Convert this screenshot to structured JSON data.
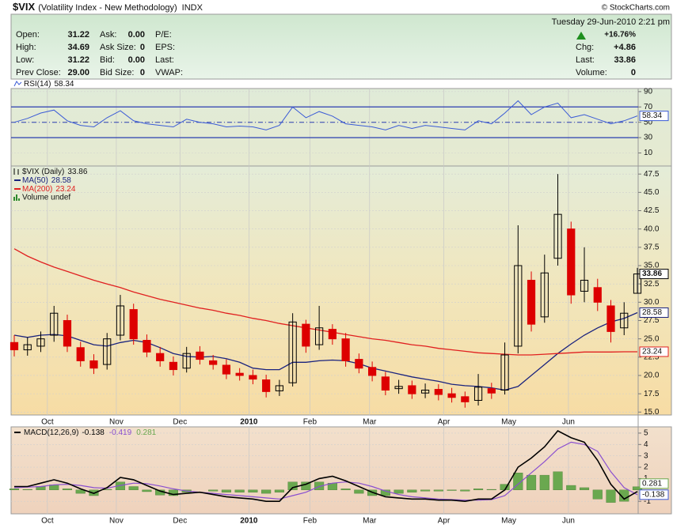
{
  "header": {
    "symbol": "$VIX",
    "name": "(Volatility Index - New Methodology)",
    "exchange": "INDX",
    "copyright": "© StockCharts.com",
    "timestamp": "Tuesday  29-Jun-2010  2:21 pm",
    "fields": [
      {
        "label": "Open:",
        "value": "31.22"
      },
      {
        "label": "High:",
        "value": "34.69"
      },
      {
        "label": "Low:",
        "value": "31.22"
      },
      {
        "label": "Prev Close:",
        "value": "29.00"
      },
      {
        "label": "Ask:",
        "value": "0.00"
      },
      {
        "label": "Ask Size:",
        "value": "0"
      },
      {
        "label": "Bid:",
        "value": "0.00"
      },
      {
        "label": "Bid Size:",
        "value": "0"
      },
      {
        "label": "P/E:"
      },
      {
        "label": "EPS:"
      },
      {
        "label": "Last:"
      },
      {
        "label": "VWAP:"
      }
    ],
    "change_pct": "+16.76%",
    "quote": [
      {
        "label": "Chg:",
        "value": "+4.86"
      },
      {
        "label": "Last:",
        "value": "33.86"
      },
      {
        "label": "Volume:",
        "value": "0"
      }
    ]
  },
  "chart_data": [
    {
      "type": "line",
      "series": [
        {
          "name": "RSI(14)",
          "color": "#3b5bd6",
          "values": [
            50,
            55,
            62,
            66,
            52,
            46,
            44,
            56,
            65,
            52,
            48,
            46,
            44,
            54,
            50,
            48,
            44,
            45,
            44,
            40,
            46,
            70,
            56,
            64,
            58,
            48,
            46,
            44,
            40,
            46,
            42,
            46,
            44,
            42,
            40,
            52,
            48,
            62,
            78,
            60,
            70,
            75,
            56,
            60,
            54,
            48,
            52,
            58.34
          ]
        }
      ],
      "bands": [
        30,
        70
      ],
      "band_color": "#2a3db0",
      "midline": 50,
      "xlim": [
        0,
        47
      ],
      "ylim": [
        -7,
        94
      ],
      "yticks": [
        10,
        30,
        50,
        70,
        90
      ],
      "grid": true
    },
    {
      "type": "candlestick",
      "name": "$VIX (Daily)",
      "up_color": "#000000",
      "down_color": "#dd0000",
      "open": [
        24.5,
        23.5,
        24.0,
        25.5,
        27.5,
        23.8,
        22.0,
        21.5,
        25.5,
        29.0,
        24.8,
        23.0,
        21.8,
        21.0,
        23.2,
        22.0,
        21.4,
        20.3,
        20.0,
        19.4,
        17.9,
        19.0,
        27.0,
        24.2,
        26.3,
        25.0,
        22.2,
        21.1,
        19.8,
        18.2,
        18.6,
        17.6,
        18.1,
        17.5,
        17.1,
        16.6,
        18.2,
        18.0,
        24.0,
        33.0,
        28.0,
        36.0,
        40.0,
        31.5,
        32.0,
        29.5,
        26.5,
        31.22
      ],
      "high": [
        25.5,
        25.2,
        26.0,
        29.5,
        28.3,
        24.6,
        22.9,
        25.8,
        31.0,
        29.8,
        25.6,
        23.9,
        22.6,
        23.9,
        24.0,
        22.8,
        22.2,
        21.0,
        20.8,
        20.1,
        19.4,
        28.5,
        27.6,
        29.5,
        27.0,
        25.8,
        23.0,
        21.9,
        20.5,
        19.4,
        19.3,
        18.9,
        18.8,
        18.3,
        17.8,
        20.2,
        19.0,
        24.5,
        40.5,
        34.2,
        36.5,
        47.5,
        41.0,
        37.5,
        33.2,
        30.3,
        30.0,
        34.69
      ],
      "low": [
        22.6,
        22.7,
        23.2,
        24.6,
        23.2,
        21.2,
        20.2,
        20.8,
        24.8,
        24.2,
        22.5,
        21.2,
        20.0,
        20.4,
        21.5,
        20.8,
        19.5,
        19.3,
        18.8,
        17.0,
        17.2,
        18.5,
        23.1,
        23.5,
        24.2,
        21.2,
        20.3,
        19.2,
        17.3,
        17.5,
        16.8,
        16.9,
        16.6,
        16.3,
        15.6,
        15.9,
        16.8,
        17.4,
        23.0,
        26.0,
        27.2,
        35.0,
        29.8,
        30.0,
        28.8,
        24.5,
        25.5,
        31.22
      ],
      "close": [
        23.5,
        24.2,
        25.0,
        28.5,
        24.0,
        22.0,
        21.0,
        25.0,
        29.5,
        25.0,
        23.2,
        22.0,
        20.8,
        23.0,
        22.2,
        21.5,
        20.2,
        20.0,
        19.5,
        17.8,
        18.6,
        27.3,
        24.0,
        26.5,
        25.0,
        22.0,
        21.0,
        20.0,
        18.0,
        18.5,
        17.5,
        18.0,
        17.4,
        17.0,
        16.4,
        18.4,
        17.6,
        22.8,
        35.0,
        27.0,
        34.0,
        42.0,
        31.0,
        33.0,
        30.0,
        26.0,
        28.5,
        33.86
      ],
      "series": [
        {
          "name": "MA(50)",
          "color": "#1a237e",
          "values": [
            25.5,
            25.2,
            25.5,
            25.6,
            25.4,
            24.8,
            24.2,
            24.0,
            24.5,
            24.8,
            24.5,
            23.8,
            23.0,
            22.6,
            22.5,
            22.6,
            22.3,
            21.8,
            21.0,
            20.8,
            20.8,
            21.8,
            21.8,
            22.0,
            22.1,
            22.0,
            21.6,
            21.0,
            20.6,
            20.2,
            19.8,
            19.5,
            19.2,
            18.8,
            18.6,
            18.5,
            18.3,
            18.0,
            18.5,
            20.0,
            21.5,
            23.0,
            24.3,
            25.5,
            26.5,
            27.3,
            27.8,
            28.58
          ]
        },
        {
          "name": "MA(200)",
          "color": "#e02020",
          "values": [
            37.3,
            36.3,
            35.5,
            34.8,
            34.2,
            33.6,
            33.0,
            32.5,
            32.0,
            31.4,
            30.9,
            30.4,
            30.0,
            29.6,
            29.2,
            28.9,
            28.5,
            28.2,
            27.8,
            27.5,
            27.1,
            26.8,
            26.5,
            26.2,
            25.9,
            25.6,
            25.3,
            25.0,
            24.8,
            24.5,
            24.2,
            24.0,
            23.7,
            23.5,
            23.3,
            23.1,
            23.0,
            22.9,
            22.8,
            22.8,
            22.9,
            23.0,
            23.1,
            23.2,
            23.2,
            23.2,
            23.24,
            23.24
          ]
        }
      ],
      "volume_legend": "Volume undef",
      "volume_color": "#2e8b2e",
      "xlim": [
        0,
        47
      ],
      "xticks": [
        {
          "value": 2.5,
          "label": "Oct"
        },
        {
          "value": 7.7,
          "label": "Nov"
        },
        {
          "value": 12.5,
          "label": "Dec"
        },
        {
          "value": 17.7,
          "label": "2010"
        },
        {
          "value": 22.3,
          "label": "Feb"
        },
        {
          "value": 26.8,
          "label": "Mar"
        },
        {
          "value": 32.4,
          "label": "Apr"
        },
        {
          "value": 37.3,
          "label": "May"
        },
        {
          "value": 41.8,
          "label": "Jun"
        }
      ],
      "ylim": [
        14.6,
        48.6
      ],
      "yticks": [
        {
          "value": 15,
          "label": "15.0"
        },
        17.5,
        {
          "value": 20,
          "label": "20.0"
        },
        22.5,
        {
          "value": 25,
          "label": "25.0"
        },
        27.5,
        {
          "value": 30,
          "label": "30.0"
        },
        32.5,
        {
          "value": 35,
          "label": "35.0"
        },
        37.5,
        {
          "value": 40,
          "label": "40.0"
        },
        42.5,
        {
          "value": 45,
          "label": "45.0"
        },
        47.5
      ],
      "grid": true
    },
    {
      "type": "macd",
      "name": "MACD(12,26,9)",
      "macd": {
        "color": "#000000",
        "values": [
          0.3,
          0.3,
          0.6,
          0.9,
          0.6,
          0.1,
          -0.3,
          0.2,
          1.1,
          0.9,
          0.4,
          -0.1,
          -0.4,
          -0.3,
          -0.2,
          -0.4,
          -0.6,
          -0.7,
          -0.8,
          -1.0,
          -1.0,
          0.2,
          0.5,
          1.0,
          1.2,
          0.8,
          0.3,
          -0.2,
          -0.6,
          -0.7,
          -0.8,
          -0.8,
          -0.9,
          -0.9,
          -1.0,
          -0.8,
          -0.8,
          0.0,
          2.0,
          2.8,
          3.8,
          5.2,
          4.6,
          4.2,
          2.6,
          0.5,
          -0.8,
          -0.138
        ]
      },
      "signal": {
        "color": "#8a4fd0",
        "values": [
          0.2,
          0.25,
          0.3,
          0.45,
          0.5,
          0.4,
          0.2,
          0.15,
          0.4,
          0.6,
          0.55,
          0.35,
          0.1,
          -0.1,
          -0.2,
          -0.3,
          -0.4,
          -0.5,
          -0.6,
          -0.7,
          -0.8,
          -0.5,
          -0.2,
          0.3,
          0.6,
          0.7,
          0.6,
          0.3,
          -0.1,
          -0.4,
          -0.6,
          -0.7,
          -0.8,
          -0.85,
          -0.9,
          -0.9,
          -0.85,
          -0.5,
          0.5,
          1.5,
          2.5,
          3.6,
          4.2,
          4.0,
          3.4,
          1.6,
          0.2,
          -0.419
        ]
      },
      "histogram": {
        "color": "#6aa84f",
        "values": [
          0.1,
          0.05,
          0.3,
          0.45,
          0.1,
          -0.3,
          -0.5,
          0.05,
          0.7,
          0.3,
          -0.15,
          -0.45,
          -0.5,
          -0.2,
          0,
          -0.1,
          -0.2,
          -0.2,
          -0.2,
          -0.3,
          -0.2,
          0.7,
          0.7,
          0.7,
          0.6,
          0.1,
          -0.3,
          -0.5,
          -0.5,
          -0.3,
          -0.2,
          -0.1,
          -0.1,
          -0.05,
          -0.1,
          0.1,
          0.05,
          0.5,
          1.5,
          1.3,
          1.3,
          1.6,
          0.4,
          0.2,
          -0.8,
          -1.1,
          -1.0,
          0.281
        ]
      },
      "xlim": [
        0,
        47
      ],
      "xticks": [
        {
          "value": 2.5,
          "label": "Oct"
        },
        {
          "value": 7.7,
          "label": "Nov"
        },
        {
          "value": 12.5,
          "label": "Dec"
        },
        {
          "value": 17.7,
          "label": "2010"
        },
        {
          "value": 22.3,
          "label": "Feb"
        },
        {
          "value": 26.8,
          "label": "Mar"
        },
        {
          "value": 32.4,
          "label": "Apr"
        },
        {
          "value": 37.3,
          "label": "May"
        },
        {
          "value": 41.8,
          "label": "Jun"
        }
      ],
      "ylim": [
        -2.1,
        5.55
      ],
      "yticks": [
        -1,
        1,
        2,
        3,
        4,
        5
      ],
      "grid": true
    }
  ]
}
